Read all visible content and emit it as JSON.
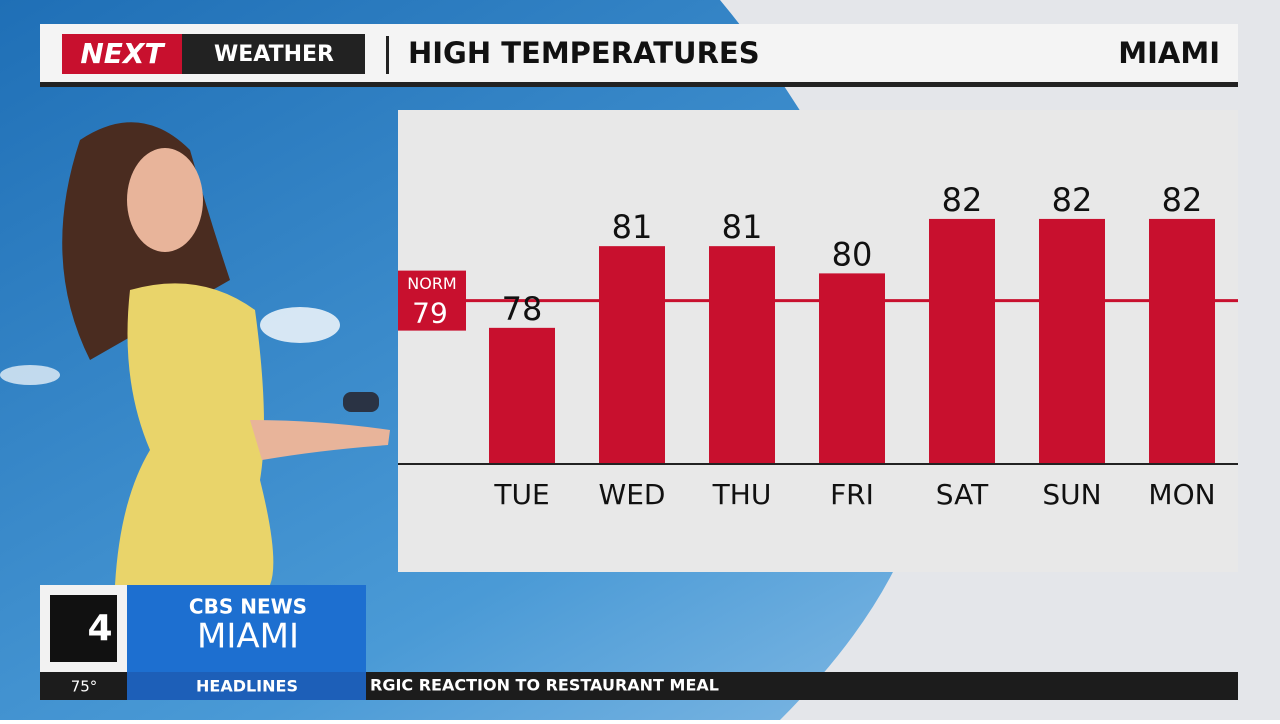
{
  "header": {
    "brand_red": "NEXT",
    "brand_dark": "WEATHER",
    "title": "HIGH TEMPERATURES",
    "location": "MIAMI"
  },
  "chart_data": {
    "type": "bar",
    "categories": [
      "TUE",
      "WED",
      "THU",
      "FRI",
      "SAT",
      "SUN",
      "MON"
    ],
    "values": [
      78,
      81,
      81,
      80,
      82,
      82,
      82
    ],
    "color": "#c8102e",
    "ylim": [
      73,
      86
    ],
    "norm": {
      "label": "NORM",
      "value": 79
    }
  },
  "lower_third": {
    "channel": "4",
    "network": "CBS NEWS",
    "station": "MIAMI"
  },
  "ticker": {
    "temperature": "75°",
    "section": "HEADLINES",
    "headline": "RGIC REACTION TO RESTAURANT MEAL"
  }
}
